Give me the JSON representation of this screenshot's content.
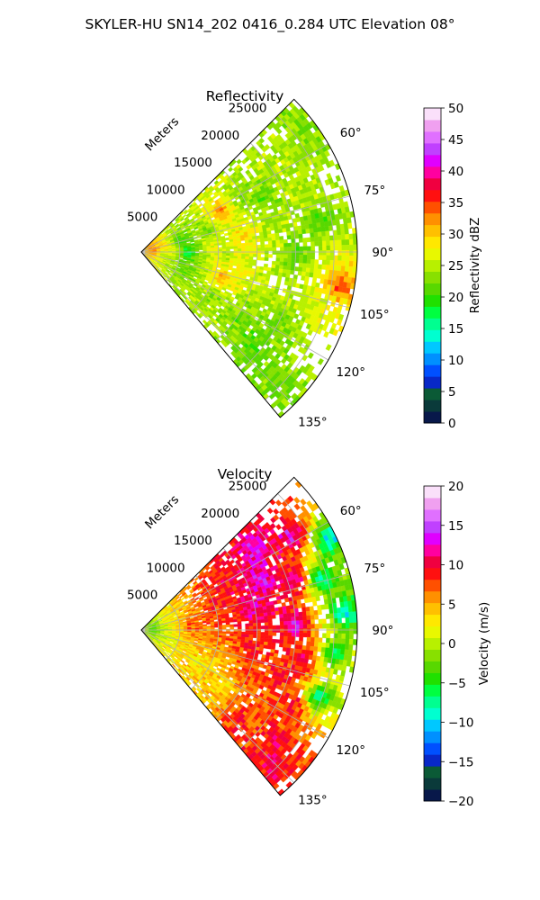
{
  "figure_title": "SKYLER-HU  SN14_202  0416_0.284 UTC Elevation 08°",
  "chart_data": [
    {
      "type": "heatmap",
      "projection": "polar-sector",
      "title": "Reflectivity",
      "theta_range_deg": [
        45,
        140
      ],
      "r_range": [
        0,
        28000
      ],
      "radial_axis_label": "Meters",
      "radial_ticks": [
        "5000",
        "10000",
        "15000",
        "20000",
        "25000"
      ],
      "radial_tick_values": [
        5000,
        10000,
        15000,
        20000,
        25000
      ],
      "angle_ticks": [
        "60°",
        "75°",
        "90°",
        "105°",
        "120°",
        "135°"
      ],
      "angle_tick_values": [
        60,
        75,
        90,
        105,
        120,
        135
      ],
      "grid": true,
      "colorbar": {
        "label": "Reflectivity dBZ",
        "range": [
          0,
          50
        ],
        "ticks": [
          "0",
          "5",
          "10",
          "15",
          "20",
          "25",
          "30",
          "35",
          "40",
          "45",
          "50"
        ],
        "colors": [
          "#08184a",
          "#0a3a3a",
          "#0b5a36",
          "#0828c8",
          "#0050ff",
          "#0090ff",
          "#00c8ff",
          "#00ffd0",
          "#00ff90",
          "#00ff40",
          "#20e000",
          "#58d800",
          "#88e000",
          "#b8f000",
          "#e8f800",
          "#ffe800",
          "#ffc000",
          "#ff9000",
          "#ff5000",
          "#ff1010",
          "#f00040",
          "#ff00a0",
          "#e000ff",
          "#c040ff",
          "#e070ff",
          "#f0a0f0",
          "#fae0fa"
        ]
      },
      "features": [
        {
          "theta": 52,
          "r": 26500,
          "value": 22
        },
        {
          "theta": 58,
          "r": 24000,
          "value": 24
        },
        {
          "theta": 60,
          "r": 20000,
          "value": 25
        },
        {
          "theta": 62,
          "r": 15000,
          "value": 22
        },
        {
          "theta": 64,
          "r": 11500,
          "value": 36
        },
        {
          "theta": 66,
          "r": 17000,
          "value": 20
        },
        {
          "theta": 70,
          "r": 22000,
          "value": 25
        },
        {
          "theta": 72,
          "r": 9000,
          "value": 20
        },
        {
          "theta": 73,
          "r": 12500,
          "value": 26
        },
        {
          "theta": 74,
          "r": 5000,
          "value": 18
        },
        {
          "theta": 76,
          "r": 3000,
          "value": 32
        },
        {
          "theta": 78,
          "r": 17000,
          "value": 24
        },
        {
          "theta": 80,
          "r": 24000,
          "value": 20
        },
        {
          "theta": 81,
          "r": 13000,
          "value": 32
        },
        {
          "theta": 83,
          "r": 1800,
          "value": 38
        },
        {
          "theta": 84,
          "r": 9000,
          "value": 29
        },
        {
          "theta": 86,
          "r": 4200,
          "value": 30
        },
        {
          "theta": 87,
          "r": 14000,
          "value": 28
        },
        {
          "theta": 88,
          "r": 26500,
          "value": 25
        },
        {
          "theta": 90,
          "r": 6000,
          "value": 11
        },
        {
          "theta": 91,
          "r": 20000,
          "value": 20
        },
        {
          "theta": 92,
          "r": 11000,
          "value": 22
        },
        {
          "theta": 93,
          "r": 27000,
          "value": 28
        },
        {
          "theta": 95,
          "r": 3000,
          "value": 20
        },
        {
          "theta": 97,
          "r": 10500,
          "value": 28
        },
        {
          "theta": 99,
          "r": 26000,
          "value": 37
        },
        {
          "theta": 102,
          "r": 8000,
          "value": 24
        },
        {
          "theta": 103,
          "r": 13000,
          "value": 28
        },
        {
          "theta": 106,
          "r": 11000,
          "value": 36
        },
        {
          "theta": 106,
          "r": 23500,
          "value": 26
        },
        {
          "theta": 110,
          "r": 6500,
          "value": 20
        },
        {
          "theta": 113,
          "r": 16000,
          "value": 24
        },
        {
          "theta": 117,
          "r": 20000,
          "value": 22
        },
        {
          "theta": 121,
          "r": 11000,
          "value": 22
        },
        {
          "theta": 124,
          "r": 15500,
          "value": 21
        },
        {
          "theta": 130,
          "r": 19000,
          "value": 20
        },
        {
          "theta": 134,
          "r": 24000,
          "value": 22
        }
      ]
    },
    {
      "type": "heatmap",
      "projection": "polar-sector",
      "title": "Velocity",
      "theta_range_deg": [
        45,
        140
      ],
      "r_range": [
        0,
        28000
      ],
      "radial_axis_label": "Meters",
      "radial_ticks": [
        "5000",
        "10000",
        "15000",
        "20000",
        "25000"
      ],
      "radial_tick_values": [
        5000,
        10000,
        15000,
        20000,
        25000
      ],
      "angle_ticks": [
        "60°",
        "75°",
        "90°",
        "105°",
        "120°",
        "135°"
      ],
      "angle_tick_values": [
        60,
        75,
        90,
        105,
        120,
        135
      ],
      "grid": true,
      "colorbar": {
        "label": "Velocity (m/s)",
        "range": [
          -20,
          20
        ],
        "ticks": [
          "−20",
          "−15",
          "−10",
          "−5",
          "0",
          "5",
          "10",
          "15",
          "20"
        ],
        "colors": [
          "#08184a",
          "#0a3a3a",
          "#0b5a36",
          "#0828c8",
          "#0050ff",
          "#0090ff",
          "#00c8ff",
          "#00ffd0",
          "#00ff90",
          "#00ff40",
          "#20e000",
          "#58d800",
          "#88e000",
          "#b8f000",
          "#e8f800",
          "#ffe800",
          "#ffc000",
          "#ff9000",
          "#ff5000",
          "#ff1010",
          "#f00040",
          "#ff00a0",
          "#e000ff",
          "#c040ff",
          "#e070ff",
          "#f0a0f0",
          "#fae0fa"
        ]
      },
      "features": [
        {
          "theta": 55,
          "r": 18000,
          "value": 14
        },
        {
          "theta": 58,
          "r": 23000,
          "value": 14
        },
        {
          "theta": 62,
          "r": 12000,
          "value": 10
        },
        {
          "theta": 64,
          "r": 27000,
          "value": -11
        },
        {
          "theta": 68,
          "r": 17000,
          "value": 15
        },
        {
          "theta": 72,
          "r": 21000,
          "value": 14
        },
        {
          "theta": 74,
          "r": 24000,
          "value": -11
        },
        {
          "theta": 76,
          "r": 10000,
          "value": 9
        },
        {
          "theta": 77,
          "r": 4000,
          "value": 3
        },
        {
          "theta": 80,
          "r": 15000,
          "value": 13
        },
        {
          "theta": 82,
          "r": 1800,
          "value": -5
        },
        {
          "theta": 85,
          "r": 26500,
          "value": -11
        },
        {
          "theta": 86,
          "r": 6500,
          "value": 8
        },
        {
          "theta": 88,
          "r": 20000,
          "value": 15
        },
        {
          "theta": 92,
          "r": 3000,
          "value": 0
        },
        {
          "theta": 94,
          "r": 9000,
          "value": 7
        },
        {
          "theta": 96,
          "r": 14000,
          "value": 10
        },
        {
          "theta": 97,
          "r": 25000,
          "value": -8
        },
        {
          "theta": 101,
          "r": 21500,
          "value": 12
        },
        {
          "theta": 105,
          "r": 5000,
          "value": 2
        },
        {
          "theta": 107,
          "r": 11000,
          "value": 5
        },
        {
          "theta": 108,
          "r": 19000,
          "value": 10
        },
        {
          "theta": 111,
          "r": 24500,
          "value": -10
        },
        {
          "theta": 114,
          "r": 16000,
          "value": 8
        },
        {
          "theta": 116,
          "r": 22000,
          "value": 11
        },
        {
          "theta": 118,
          "r": 9000,
          "value": 1
        },
        {
          "theta": 122,
          "r": 19000,
          "value": 7
        },
        {
          "theta": 126,
          "r": 13000,
          "value": 2
        },
        {
          "theta": 129,
          "r": 22500,
          "value": 11
        },
        {
          "theta": 132,
          "r": 17000,
          "value": 9
        },
        {
          "theta": 135,
          "r": 24000,
          "value": 11
        }
      ]
    }
  ]
}
